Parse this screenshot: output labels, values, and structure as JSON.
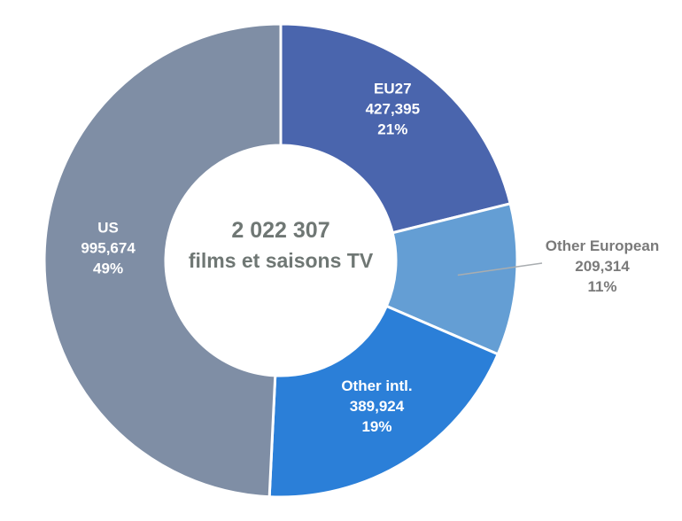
{
  "chart_data": {
    "type": "pie",
    "donut": true,
    "center_label": {
      "total": "2 022 307",
      "caption": "films et saisons TV"
    },
    "categories": [
      "EU27",
      "Other European",
      "Other intl.",
      "US"
    ],
    "values": [
      427395,
      209314,
      389924,
      995674
    ],
    "value_labels": [
      "427,395",
      "209,314",
      "389,924",
      "995,674"
    ],
    "percent_labels": [
      "21%",
      "11%",
      "19%",
      "49%"
    ],
    "colors": [
      "#4a65ad",
      "#649ed4",
      "#2b7fd8",
      "#7f8ea5"
    ],
    "label_colors": [
      "#ffffff",
      "#7a7a7a",
      "#ffffff",
      "#ffffff"
    ],
    "start_angle_deg": 0,
    "direction": "clockwise"
  }
}
